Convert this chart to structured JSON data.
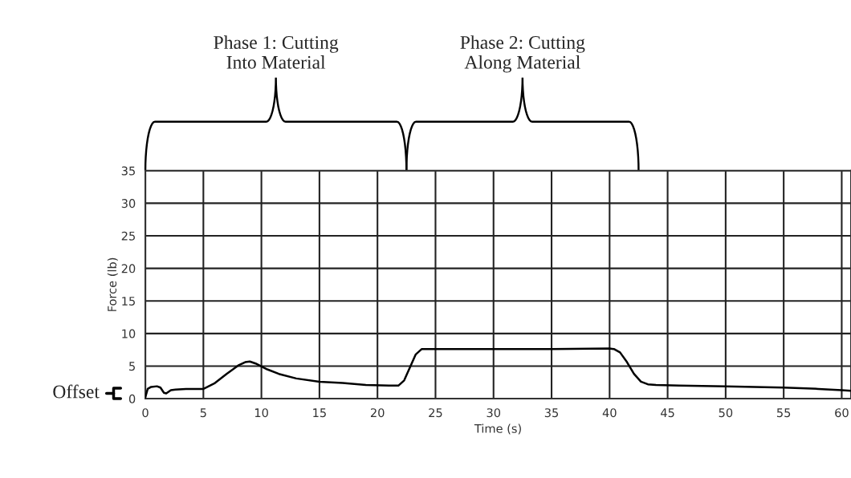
{
  "chart_data": {
    "type": "line",
    "xlabel": "Time (s)",
    "ylabel": "Force (lb)",
    "x": [
      0,
      0.2,
      0.5,
      1.0,
      1.3,
      1.6,
      1.8,
      2.2,
      2.6,
      3.5,
      5,
      6,
      7,
      8,
      8.6,
      9,
      9.5,
      10.5,
      11.5,
      13,
      15,
      17,
      19,
      21,
      21.8,
      22.3,
      22.8,
      23.3,
      23.8,
      25,
      30,
      35,
      40,
      40.4,
      40.9,
      41.5,
      42.1,
      42.7,
      43.3,
      44,
      46,
      50,
      55,
      58,
      60,
      60.8
    ],
    "series": [
      {
        "color": "#000000",
        "values": [
          0.2,
          1.5,
          1.8,
          1.9,
          1.7,
          0.9,
          0.8,
          1.3,
          1.4,
          1.5,
          1.5,
          2.4,
          3.8,
          5.1,
          5.6,
          5.7,
          5.4,
          4.5,
          3.8,
          3.1,
          2.6,
          2.4,
          2.1,
          2.0,
          2.0,
          2.8,
          4.8,
          6.8,
          7.6,
          7.6,
          7.6,
          7.6,
          7.7,
          7.6,
          7.1,
          5.6,
          3.8,
          2.6,
          2.2,
          2.1,
          2.0,
          1.9,
          1.7,
          1.5,
          1.3,
          1.2
        ]
      }
    ],
    "xlim": [
      0,
      60.8
    ],
    "ylim": [
      0,
      35
    ],
    "xticks": [
      0,
      5,
      10,
      15,
      20,
      25,
      30,
      35,
      40,
      45,
      50,
      55,
      60
    ],
    "yticks": [
      0,
      5,
      10,
      15,
      20,
      25,
      30,
      35
    ],
    "grid": true,
    "annotations": [
      "Phase 1: Cutting\nInto Material",
      "Phase 2: Cutting\nAlong Material",
      "Offset"
    ]
  }
}
